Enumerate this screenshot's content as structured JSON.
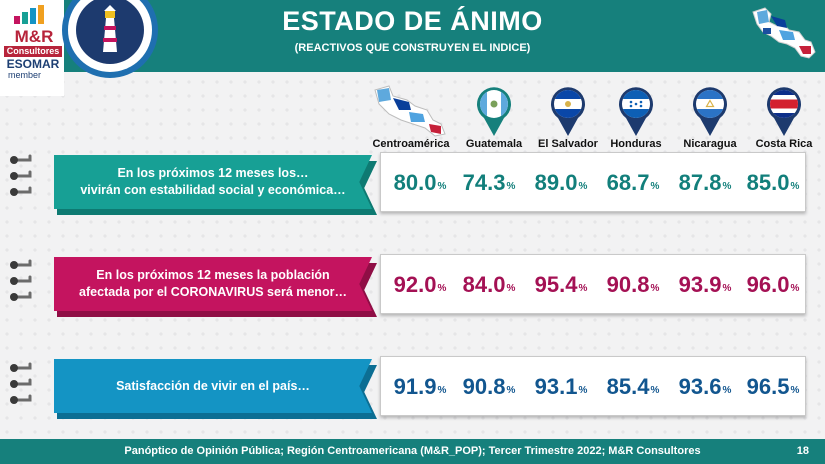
{
  "header": {
    "title": "ESTADO DE ÁNIMO",
    "subtitle": "(REACTIVOS QUE CONSTRUYEN EL INDICE)"
  },
  "logo": {
    "brand": "M&R",
    "brand_sub": "Consultores",
    "esomar": "ESOMAR",
    "member": "member"
  },
  "countries": [
    {
      "label": "Centroamérica",
      "icon": "central-america-map-icon"
    },
    {
      "label": "Guatemala",
      "icon": "guatemala-flag-pin-icon"
    },
    {
      "label": "El Salvador",
      "icon": "el-salvador-flag-pin-icon"
    },
    {
      "label": "Honduras",
      "icon": "honduras-flag-pin-icon"
    },
    {
      "label": "Nicaragua",
      "icon": "nicaragua-flag-pin-icon"
    },
    {
      "label": "Costa Rica",
      "icon": "costa-rica-flag-pin-icon"
    }
  ],
  "rows": [
    {
      "label_line1": "En los próximos 12 meses los…",
      "label_line2": "vivirán con estabilidad social y económica…",
      "color": "#17a095",
      "values": [
        "80.0",
        "74.3",
        "89.0",
        "68.7",
        "87.8",
        "85.0"
      ],
      "unit": "%"
    },
    {
      "label_line1": "En los próximos 12 meses la población",
      "label_line2": "afectada por el CORONAVIRUS será menor…",
      "color": "#c4145f",
      "values": [
        "92.0",
        "84.0",
        "95.4",
        "90.8",
        "93.9",
        "96.0"
      ],
      "unit": "%"
    },
    {
      "label_line1": "Satisfacción de vivir en el país…",
      "label_line2": "",
      "color": "#1494c4",
      "values": [
        "91.9",
        "90.8",
        "93.1",
        "85.4",
        "93.6",
        "96.5"
      ],
      "unit": "%"
    }
  ],
  "footer": {
    "text": "Panóptico de Opinión Pública; Región Centroamericana (M&R_POP); Tercer Trimestre 2022; M&R Consultores",
    "page": "18"
  }
}
